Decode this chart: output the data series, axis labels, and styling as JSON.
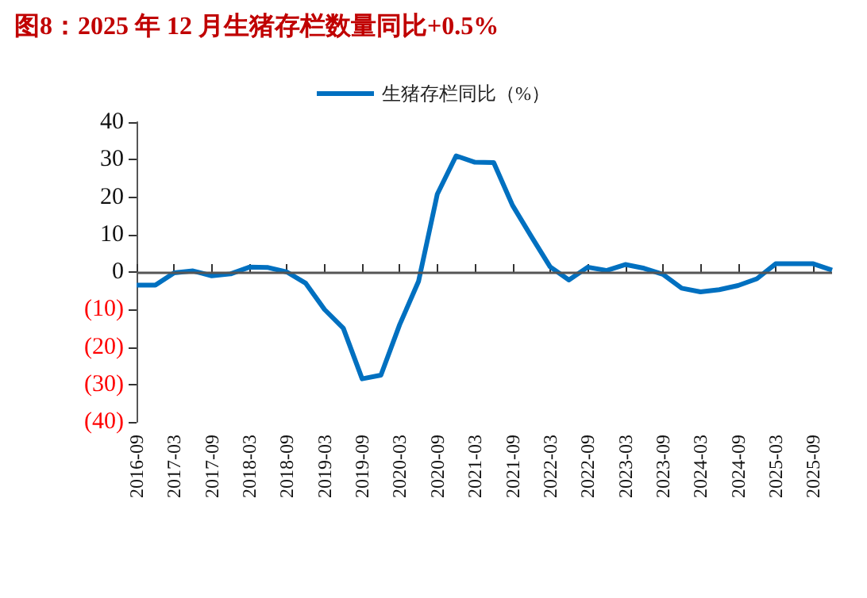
{
  "chart_data": {
    "type": "line",
    "title": "图8：2025 年 12 月生猪存栏数量同比+0.5%",
    "categories": [
      "2016-09",
      null,
      "2017-03",
      null,
      "2017-09",
      null,
      "2018-03",
      null,
      "2018-09",
      null,
      "2019-03",
      null,
      "2019-09",
      null,
      "2020-03",
      null,
      "2020-09",
      null,
      "2021-03",
      null,
      "2021-09",
      null,
      "2022-03",
      null,
      "2022-09",
      null,
      "2023-03",
      null,
      "2023-09",
      null,
      "2024-03",
      null,
      "2024-09",
      null,
      "2025-03",
      null,
      "2025-09",
      null
    ],
    "series": [
      {
        "name": "生猪存栏同比（%）",
        "color": "#0070c0",
        "values": [
          -3.5,
          -3.5,
          -0.2,
          0.3,
          -1,
          -0.5,
          1.3,
          1.2,
          0,
          -3,
          -10,
          -15,
          -28.5,
          -27.5,
          -14,
          -2.5,
          20.8,
          31,
          29.3,
          29.2,
          17.8,
          9.5,
          1.4,
          -2.1,
          1.3,
          0.4,
          2,
          1,
          -0.6,
          -4.3,
          -5.3,
          -4.7,
          -3.6,
          -1.8,
          2.2,
          2.2,
          2.2,
          0.5
        ]
      }
    ],
    "ylim": [
      -40,
      40
    ],
    "yticks": [
      {
        "value": -40,
        "label": "(40)"
      },
      {
        "value": -30,
        "label": "(30)"
      },
      {
        "value": -20,
        "label": "(20)"
      },
      {
        "value": -10,
        "label": "(10)"
      },
      0,
      10,
      20,
      30,
      40
    ],
    "ref_lines": [
      {
        "axis": "y",
        "value": 0,
        "color": "#555555"
      }
    ],
    "grid": false,
    "legend": "top",
    "marker": "none",
    "line_style": "solid"
  }
}
